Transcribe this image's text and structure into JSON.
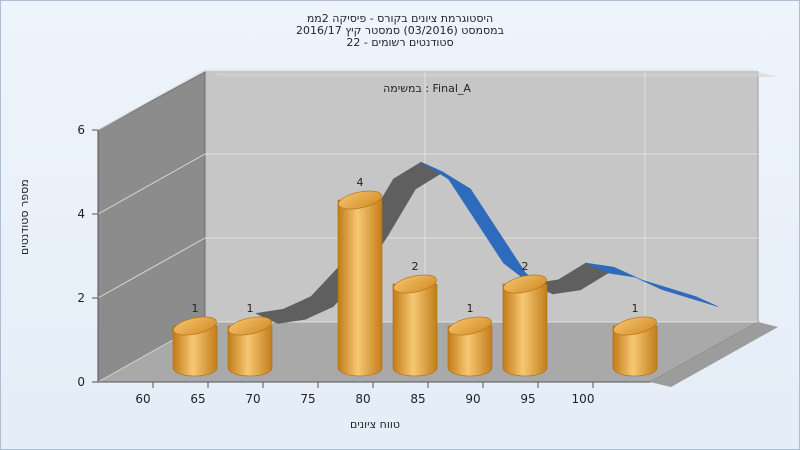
{
  "titles": {
    "line1": "היסטוגרמת ציונים בקורס - פיסיקה 2ממ",
    "line2": "במסמסט  (03/2016)  סמסטר קיץ 2016/17",
    "line3": "סטודנטים רשומים - 22"
  },
  "chart_data": {
    "type": "bar",
    "subtitle": "במשימה : Final_A",
    "xlabel": "טווח ציונים",
    "ylabel": "מספר סטודנטים",
    "x_ticks": [
      "60",
      "65",
      "70",
      "75",
      "80",
      "85",
      "90",
      "95",
      "100"
    ],
    "y_ticks": [
      "0",
      "2",
      "4",
      "6"
    ],
    "ylim": [
      0,
      6
    ],
    "categories": [
      "60-65",
      "65-70",
      "75-80",
      "80-85",
      "85-90",
      "90-95",
      "100-105"
    ],
    "values": [
      1,
      1,
      4,
      2,
      1,
      2,
      1
    ],
    "curve": {
      "x": [
        65,
        67.5,
        70,
        72.5,
        75,
        77.5,
        80,
        82.5,
        85,
        87.5,
        90,
        92.5,
        95,
        97.5,
        100,
        102.5,
        105
      ],
      "y": [
        0.8,
        0.9,
        1.2,
        1.9,
        2.9,
        4.0,
        4.4,
        4.0,
        3.0,
        2.0,
        1.5,
        1.6,
        2.0,
        1.9,
        1.6,
        1.4,
        1.2
      ]
    },
    "colors": {
      "bar": "#e9a53c",
      "curve_front": "#2f6bbd",
      "curve_back": "#5f5f5f",
      "back_wall": "#c6c6c6",
      "side_wall": "#8c8c8c",
      "floor": "#a9a9a9"
    }
  }
}
